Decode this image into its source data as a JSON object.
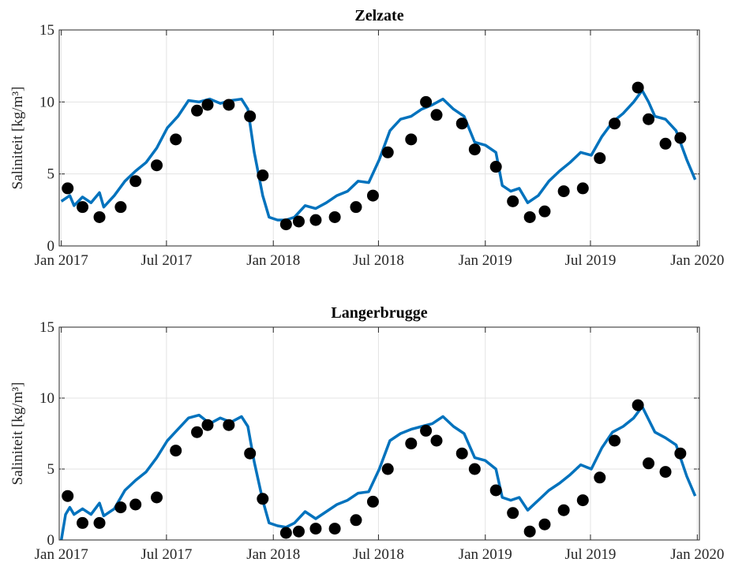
{
  "chart_data": [
    {
      "type": "line",
      "title": "Zelzate",
      "ylabel": "Saliniteit [kg/m³]",
      "xlim": [
        2016.99,
        2020.01
      ],
      "ylim": [
        0,
        15
      ],
      "yticks": [
        0,
        5,
        10,
        15
      ],
      "xticks": [
        {
          "value": 2017,
          "label": "Jan 2017"
        },
        {
          "value": 2017.496,
          "label": "Jul 2017"
        },
        {
          "value": 2018,
          "label": "Jan 2018"
        },
        {
          "value": 2018.496,
          "label": "Jul 2018"
        },
        {
          "value": 2019,
          "label": "Jan 2019"
        },
        {
          "value": 2019.496,
          "label": "Jul 2019"
        },
        {
          "value": 2020,
          "label": "Jan 2020"
        }
      ],
      "grid": true,
      "series": [
        {
          "color": "#0072bd",
          "x": [
            2017.0,
            2017.04,
            2017.06,
            2017.1,
            2017.14,
            2017.18,
            2017.2,
            2017.25,
            2017.3,
            2017.35,
            2017.4,
            2017.45,
            2017.5,
            2017.55,
            2017.6,
            2017.65,
            2017.7,
            2017.75,
            2017.8,
            2017.85,
            2017.88,
            2017.91,
            2017.95,
            2017.98,
            2018.02,
            2018.06,
            2018.1,
            2018.15,
            2018.2,
            2018.25,
            2018.3,
            2018.35,
            2018.4,
            2018.45,
            2018.5,
            2018.55,
            2018.6,
            2018.65,
            2018.7,
            2018.75,
            2018.8,
            2018.85,
            2018.9,
            2018.95,
            2019.0,
            2019.05,
            2019.08,
            2019.12,
            2019.16,
            2019.2,
            2019.25,
            2019.3,
            2019.35,
            2019.4,
            2019.45,
            2019.5,
            2019.55,
            2019.6,
            2019.65,
            2019.7,
            2019.74,
            2019.77,
            2019.8,
            2019.85,
            2019.9,
            2019.95,
            2019.99
          ],
          "values": [
            3.1,
            3.5,
            2.8,
            3.4,
            3.0,
            3.7,
            2.7,
            3.5,
            4.5,
            5.2,
            5.8,
            6.8,
            8.2,
            9.0,
            10.1,
            10.0,
            10.2,
            9.9,
            10.1,
            10.2,
            9.5,
            6.5,
            3.5,
            2.0,
            1.8,
            1.8,
            2.0,
            2.8,
            2.6,
            3.0,
            3.5,
            3.8,
            4.5,
            4.4,
            6.0,
            8.0,
            8.8,
            9.0,
            9.5,
            9.8,
            10.2,
            9.5,
            9.0,
            7.2,
            7.0,
            6.5,
            4.2,
            3.8,
            4.0,
            3.0,
            3.5,
            4.5,
            5.2,
            5.8,
            6.5,
            6.3,
            7.6,
            8.6,
            9.2,
            10.0,
            10.8,
            10.0,
            9.0,
            8.8,
            8.0,
            6.0,
            4.6
          ]
        },
        {
          "color": "#000000",
          "marker": "circle",
          "x": [
            2017.03,
            2017.1,
            2017.18,
            2017.28,
            2017.35,
            2017.45,
            2017.54,
            2017.64,
            2017.69,
            2017.79,
            2017.89,
            2017.95,
            2018.06,
            2018.12,
            2018.2,
            2018.29,
            2018.39,
            2018.47,
            2018.54,
            2018.65,
            2018.72,
            2018.77,
            2018.89,
            2018.95,
            2019.05,
            2019.13,
            2019.21,
            2019.28,
            2019.37,
            2019.46,
            2019.54,
            2019.61,
            2019.72,
            2019.77,
            2019.85,
            2019.92
          ],
          "values": [
            4.0,
            2.7,
            2.0,
            2.7,
            4.5,
            5.6,
            7.4,
            9.4,
            9.8,
            9.8,
            9.0,
            4.9,
            1.5,
            1.7,
            1.8,
            2.0,
            2.7,
            3.5,
            6.5,
            7.4,
            10.0,
            9.1,
            8.5,
            6.7,
            5.5,
            3.1,
            2.0,
            2.4,
            3.8,
            4.0,
            6.1,
            8.5,
            11.0,
            8.8,
            7.1,
            7.5
          ]
        }
      ]
    },
    {
      "type": "line",
      "title": "Langerbrugge",
      "ylabel": "Saliniteit [kg/m³]",
      "xlim": [
        2016.99,
        2020.01
      ],
      "ylim": [
        0,
        15
      ],
      "yticks": [
        0,
        5,
        10,
        15
      ],
      "xticks": [
        {
          "value": 2017,
          "label": "Jan 2017"
        },
        {
          "value": 2017.496,
          "label": "Jul 2017"
        },
        {
          "value": 2018,
          "label": "Jan 2018"
        },
        {
          "value": 2018.496,
          "label": "Jul 2018"
        },
        {
          "value": 2019,
          "label": "Jan 2019"
        },
        {
          "value": 2019.496,
          "label": "Jul 2019"
        },
        {
          "value": 2020,
          "label": "Jan 2020"
        }
      ],
      "grid": true,
      "series": [
        {
          "color": "#0072bd",
          "x": [
            2017.0,
            2017.02,
            2017.04,
            2017.06,
            2017.1,
            2017.14,
            2017.18,
            2017.2,
            2017.25,
            2017.3,
            2017.35,
            2017.4,
            2017.45,
            2017.5,
            2017.55,
            2017.6,
            2017.65,
            2017.7,
            2017.75,
            2017.8,
            2017.85,
            2017.88,
            2017.91,
            2017.95,
            2017.98,
            2018.02,
            2018.06,
            2018.1,
            2018.15,
            2018.2,
            2018.25,
            2018.3,
            2018.35,
            2018.4,
            2018.45,
            2018.5,
            2018.55,
            2018.6,
            2018.65,
            2018.7,
            2018.75,
            2018.8,
            2018.85,
            2018.9,
            2018.95,
            2019.0,
            2019.05,
            2019.08,
            2019.12,
            2019.16,
            2019.2,
            2019.25,
            2019.3,
            2019.35,
            2019.4,
            2019.45,
            2019.5,
            2019.55,
            2019.6,
            2019.65,
            2019.7,
            2019.74,
            2019.77,
            2019.8,
            2019.85,
            2019.9,
            2019.95,
            2019.99
          ],
          "values": [
            0.0,
            1.8,
            2.3,
            1.8,
            2.2,
            1.8,
            2.6,
            1.7,
            2.2,
            3.5,
            4.2,
            4.8,
            5.8,
            7.0,
            7.8,
            8.6,
            8.8,
            8.2,
            8.6,
            8.3,
            8.7,
            8.0,
            5.5,
            2.8,
            1.2,
            1.0,
            0.9,
            1.2,
            2.0,
            1.5,
            2.0,
            2.5,
            2.8,
            3.3,
            3.4,
            5.0,
            7.0,
            7.5,
            7.8,
            8.0,
            8.2,
            8.7,
            8.0,
            7.5,
            5.8,
            5.6,
            5.0,
            3.0,
            2.8,
            3.0,
            2.1,
            2.8,
            3.5,
            4.0,
            4.6,
            5.3,
            5.0,
            6.5,
            7.6,
            8.0,
            8.6,
            9.4,
            8.5,
            7.6,
            7.2,
            6.7,
            4.5,
            3.1
          ]
        },
        {
          "color": "#000000",
          "marker": "circle",
          "x": [
            2017.03,
            2017.1,
            2017.18,
            2017.28,
            2017.35,
            2017.45,
            2017.54,
            2017.64,
            2017.69,
            2017.79,
            2017.89,
            2017.95,
            2018.06,
            2018.12,
            2018.2,
            2018.29,
            2018.39,
            2018.47,
            2018.54,
            2018.65,
            2018.72,
            2018.77,
            2018.89,
            2018.95,
            2019.05,
            2019.13,
            2019.21,
            2019.28,
            2019.37,
            2019.46,
            2019.54,
            2019.61,
            2019.72,
            2019.77,
            2019.85,
            2019.92
          ],
          "values": [
            3.1,
            1.2,
            1.2,
            2.3,
            2.5,
            3.0,
            6.3,
            7.6,
            8.1,
            8.1,
            6.1,
            2.9,
            0.5,
            0.6,
            0.8,
            0.8,
            1.4,
            2.7,
            5.0,
            6.8,
            7.7,
            7.0,
            6.1,
            5.0,
            3.5,
            1.9,
            0.6,
            1.1,
            2.1,
            2.8,
            4.4,
            7.0,
            9.5,
            5.4,
            4.8,
            6.1
          ]
        }
      ]
    }
  ]
}
